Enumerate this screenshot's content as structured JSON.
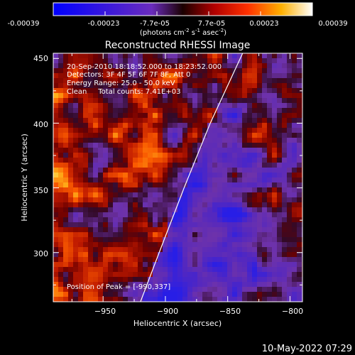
{
  "colorbar": {
    "ticks": [
      "-0.00039",
      "-0.00023",
      "-7.7e-05",
      "7.7e-05",
      "0.00023",
      "0.00039"
    ],
    "units": {
      "prefix": "(photons cm",
      "exp1": "-2",
      "mid1": " s",
      "exp2": "-1",
      "mid2": " asec",
      "exp3": "-2",
      "suffix": ")"
    },
    "range": [
      -0.00039,
      0.00039
    ]
  },
  "chart_data": {
    "type": "heatmap",
    "title": "Reconstructed RHESSI Image",
    "xlabel": "Heliocentric X (arcsec)",
    "ylabel": "Heliocentric Y (arcsec)",
    "xlim": [
      -990,
      -790
    ],
    "ylim": [
      262,
      454
    ],
    "x_ticks": [
      -950,
      -900,
      -850,
      -800
    ],
    "y_ticks": [
      300,
      350,
      400,
      450
    ],
    "x_tick_labels": [
      "−950",
      "−900",
      "−850",
      "−800"
    ],
    "y_tick_labels": [
      "300",
      "350",
      "400",
      "450"
    ],
    "annotations": [
      "20-Sep-2010 18:18:52.000 to 18:23:52.000",
      "Detectors: 3F 4F 5F 6F 7F 8F, Att 0",
      "Energy Range: 25.0 - 50.0 keV",
      "Clean     Total counts: 7.41E+03"
    ],
    "peak_label": "Position of Peak = [-990,337]",
    "peak": [
      -990,
      337
    ],
    "limb": [
      [
        -920,
        262
      ],
      [
        -905,
        300
      ],
      [
        -885,
        350
      ],
      [
        -864,
        400
      ],
      [
        -838,
        454
      ]
    ]
  },
  "timestamp": "10-May-2022 07:29"
}
